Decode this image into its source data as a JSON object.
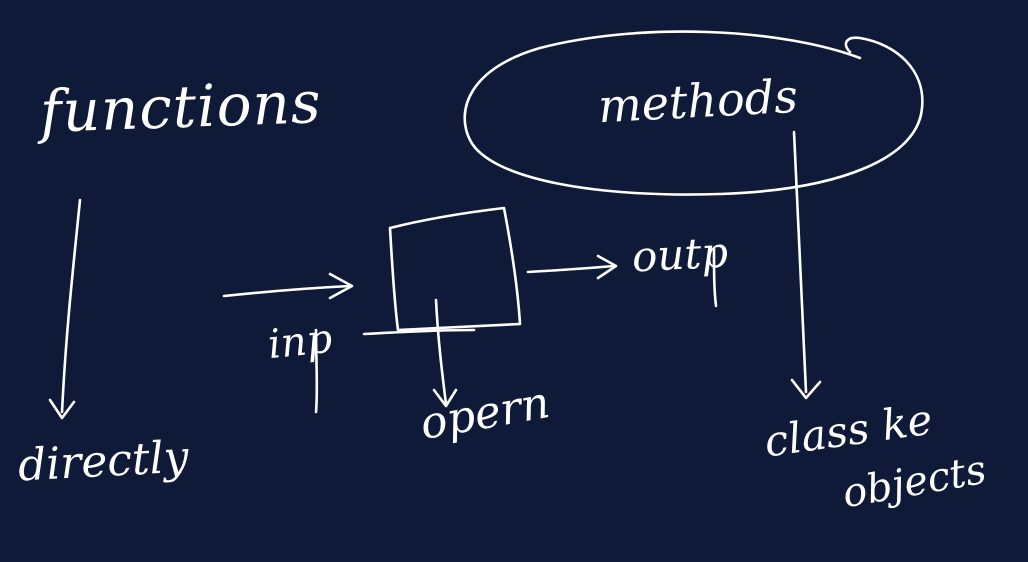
{
  "board": {
    "background": "#0e1a38",
    "ink": "#ffffff"
  },
  "labels": {
    "functions": "functions",
    "methods": "methods",
    "directly": "directly",
    "inp": "inp",
    "opern": "opern",
    "outp": "outp",
    "class_ke": "class ke",
    "objects": "objects"
  },
  "shapes": {
    "process_box": "square",
    "methods_outline": "ellipse"
  }
}
